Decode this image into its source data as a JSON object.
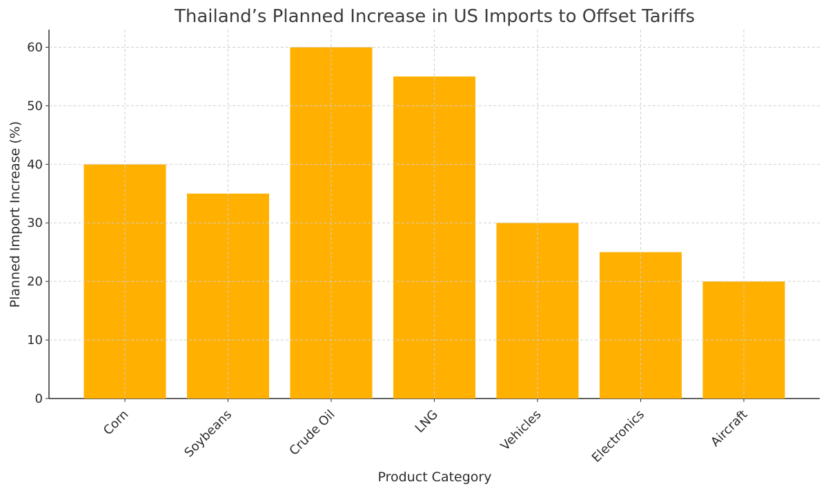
{
  "chart_data": {
    "type": "bar",
    "title": "Thailand’s Planned Increase in US Imports to Offset Tariffs",
    "xlabel": "Product Category",
    "ylabel": "Planned Import Increase (%)",
    "categories": [
      "Corn",
      "Soybeans",
      "Crude Oil",
      "LNG",
      "Vehicles",
      "Electronics",
      "Aircraft"
    ],
    "values": [
      40,
      35,
      60,
      55,
      30,
      25,
      20
    ],
    "ylim": [
      0,
      63
    ],
    "yticks": [
      0,
      10,
      20,
      30,
      40,
      50,
      60
    ],
    "grid": true,
    "bar_color": "#FFB000"
  }
}
